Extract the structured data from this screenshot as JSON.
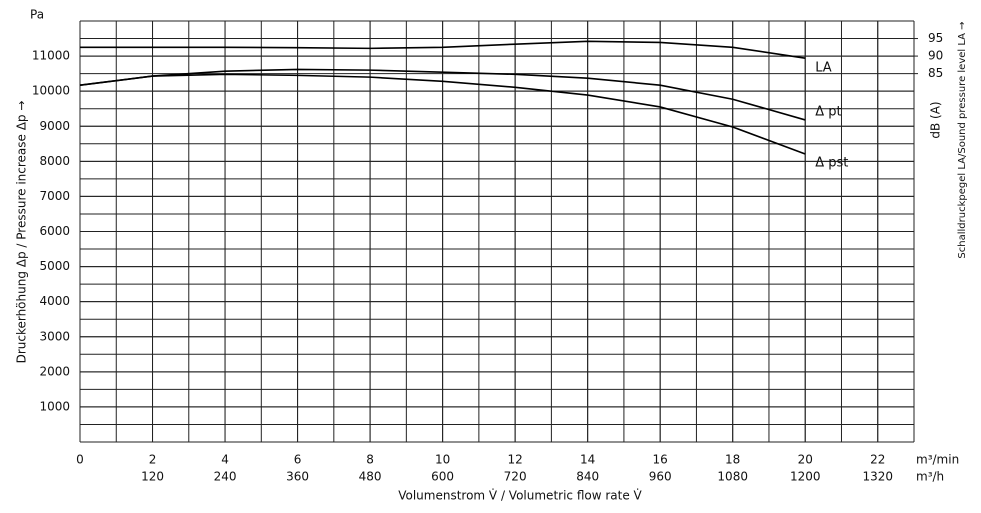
{
  "chart_data": {
    "type": "line",
    "ylabel": "Druckerhöhung Δp / Pressure increase  Δp →",
    "y_unit": "Pa",
    "xlabel": "Volumenstrom V̇ / Volumetric flow rate V̇",
    "x_unit": "m³/min",
    "x2_unit": "m³/h",
    "y2label": "Schalldruckpegel LA/Sound pressure level LA →",
    "y2_unit": "dB (A)",
    "x": [
      0,
      2,
      4,
      6,
      8,
      10,
      12,
      14,
      16,
      18,
      20
    ],
    "xlim": [
      0,
      23
    ],
    "xticks": [
      0,
      2,
      4,
      6,
      8,
      10,
      12,
      14,
      16,
      18,
      20,
      22
    ],
    "x2lim": [
      0,
      1380
    ],
    "x2ticks": [
      120,
      240,
      360,
      480,
      600,
      720,
      840,
      960,
      1080,
      1200,
      1320
    ],
    "ylim": [
      0,
      12000
    ],
    "yticks": [
      1000,
      2000,
      3000,
      4000,
      5000,
      6000,
      7000,
      8000,
      9000,
      10000,
      11000
    ],
    "y2lim": [
      -20,
      100
    ],
    "y2ticks": [
      85,
      90,
      95
    ],
    "grid": true,
    "series": [
      {
        "name": "LA",
        "color": "#000000",
        "axis": "y2",
        "values": [
          92.5,
          92.5,
          92.5,
          92.4,
          92.2,
          92.5,
          93.4,
          94.2,
          93.9,
          92.5,
          89.4
        ]
      },
      {
        "name": "Δ pt",
        "color": "#000000",
        "values": [
          10170,
          10430,
          10570,
          10620,
          10600,
          10540,
          10480,
          10370,
          10170,
          9770,
          9180
        ]
      },
      {
        "name": "Δ pst",
        "color": "#000000",
        "values": [
          10170,
          10430,
          10480,
          10450,
          10400,
          10280,
          10110,
          9890,
          9550,
          8980,
          8210
        ]
      }
    ]
  }
}
